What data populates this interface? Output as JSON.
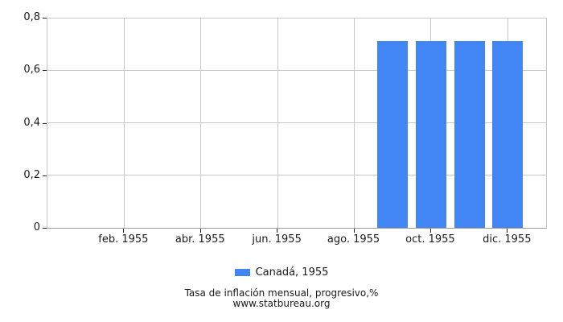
{
  "chart_data": {
    "type": "bar",
    "title": "Tasa de inflación mensual, progresivo,%",
    "source": "www.statbureau.org",
    "colors": {
      "bar": "#4285f4",
      "grid": "#c9c9c9",
      "axis": "#9b9b9b",
      "tick": "#222222",
      "text": "#1a1a1a"
    },
    "x_axis": {
      "months_in_year": 12,
      "axis_slots": 13,
      "tick_months": [
        2,
        4,
        6,
        8,
        10,
        12
      ],
      "tick_labels": [
        "feb. 1955",
        "abr. 1955",
        "jun. 1955",
        "ago. 1955",
        "oct. 1955",
        "dic. 1955"
      ]
    },
    "y_axis": {
      "min": 0,
      "max": 0.8,
      "tick_values": [
        0,
        0.2,
        0.4,
        0.6,
        0.8
      ],
      "tick_labels": [
        "0",
        "0,2",
        "0,4",
        "0,6",
        "0,8"
      ]
    },
    "series": [
      {
        "name": "Canadá, 1955",
        "months": [
          1,
          2,
          3,
          4,
          5,
          6,
          7,
          8,
          9,
          10,
          11,
          12
        ],
        "values": [
          0,
          0,
          0,
          0,
          0,
          0,
          0,
          0,
          0.71,
          0.71,
          0.71,
          0.71
        ]
      }
    ],
    "legend_position": "bottom",
    "grid": true
  }
}
